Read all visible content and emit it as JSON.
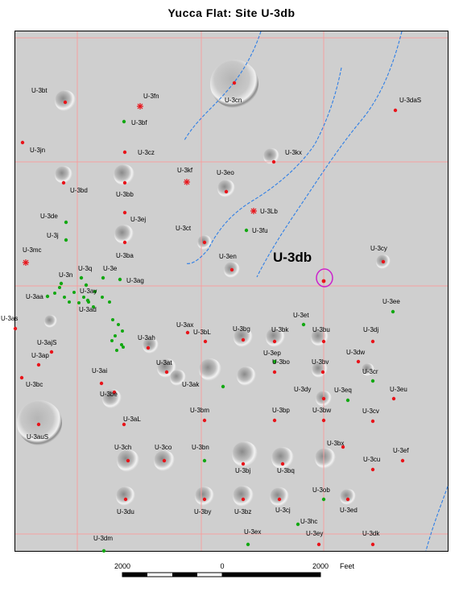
{
  "title": "Yucca Flat: Site U-3db",
  "highlight": {
    "label": "U-3db"
  },
  "colors": {
    "grid": "#f4a0a0",
    "stream": "#2f7fe6",
    "red_site": "#e8141a",
    "green_site": "#12a812",
    "highlight": "#cc22cc",
    "terrain": "#cfcfcf"
  },
  "scale": {
    "left_label": "2000",
    "mid_label": "0",
    "right_label": "2000",
    "unit": "Feet"
  },
  "sites": [
    {
      "name": "U-3bt",
      "type": "red"
    },
    {
      "name": "U-3fn",
      "type": "star"
    },
    {
      "name": "U-3bf",
      "type": "green"
    },
    {
      "name": "U-3cn",
      "type": "red"
    },
    {
      "name": "U-3daS",
      "type": "red"
    },
    {
      "name": "U-3jn",
      "type": "red"
    },
    {
      "name": "U-3cz",
      "type": "red"
    },
    {
      "name": "U-3kx",
      "type": "red"
    },
    {
      "name": "U-3kf",
      "type": "star"
    },
    {
      "name": "U-3eo",
      "type": "red"
    },
    {
      "name": "U-3bd",
      "type": "red"
    },
    {
      "name": "U-3bb",
      "type": "red"
    },
    {
      "name": "U-3Lb",
      "type": "star"
    },
    {
      "name": "U-3de",
      "type": "green"
    },
    {
      "name": "U-3ej",
      "type": "red"
    },
    {
      "name": "U-3j",
      "type": "green"
    },
    {
      "name": "U-3ct",
      "type": "red"
    },
    {
      "name": "U-3fu",
      "type": "green"
    },
    {
      "name": "U-3mc",
      "type": "star"
    },
    {
      "name": "U-3ba",
      "type": "red"
    },
    {
      "name": "U-3cy",
      "type": "red"
    },
    {
      "name": "U-3en",
      "type": "red"
    },
    {
      "name": "U-3n",
      "type": "green"
    },
    {
      "name": "U-3q",
      "type": "green"
    },
    {
      "name": "U-3e",
      "type": "green"
    },
    {
      "name": "U-3ag",
      "type": "green"
    },
    {
      "name": "U-3ay",
      "type": "green"
    },
    {
      "name": "U-3aa",
      "type": "green"
    },
    {
      "name": "U-3ad",
      "type": "green"
    },
    {
      "name": "U-3ee",
      "type": "green"
    },
    {
      "name": "U-3as",
      "type": "red"
    },
    {
      "name": "U-3et",
      "type": "green"
    },
    {
      "name": "U-3ax",
      "type": "red"
    },
    {
      "name": "U-3bL",
      "type": "red"
    },
    {
      "name": "U-3bg",
      "type": "red"
    },
    {
      "name": "U-3bk",
      "type": "red"
    },
    {
      "name": "U-3bu",
      "type": "red"
    },
    {
      "name": "U-3dj",
      "type": "red"
    },
    {
      "name": "U-3ajS",
      "type": "red"
    },
    {
      "name": "U-3ah",
      "type": "red"
    },
    {
      "name": "U-3ep",
      "type": "green"
    },
    {
      "name": "U-3dw",
      "type": "red"
    },
    {
      "name": "U-3ap",
      "type": "red"
    },
    {
      "name": "U-3at",
      "type": "red"
    },
    {
      "name": "U-3bo",
      "type": "red"
    },
    {
      "name": "U-3bv",
      "type": "red"
    },
    {
      "name": "U-3cr",
      "type": "green"
    },
    {
      "name": "U-3bc",
      "type": "red"
    },
    {
      "name": "U-3ai",
      "type": "red"
    },
    {
      "name": "U-3ak",
      "type": "green"
    },
    {
      "name": "U-3dy",
      "type": "red"
    },
    {
      "name": "U-3eq",
      "type": "green"
    },
    {
      "name": "U-3eu",
      "type": "red"
    },
    {
      "name": "U-3be",
      "type": "red"
    },
    {
      "name": "U-3bm",
      "type": "red"
    },
    {
      "name": "U-3bp",
      "type": "red"
    },
    {
      "name": "U-3bw",
      "type": "red"
    },
    {
      "name": "U-3cv",
      "type": "red"
    },
    {
      "name": "U-3aL",
      "type": "red"
    },
    {
      "name": "U-3auS",
      "type": "red"
    },
    {
      "name": "U-3bx",
      "type": "red"
    },
    {
      "name": "U-3ch",
      "type": "red"
    },
    {
      "name": "U-3co",
      "type": "red"
    },
    {
      "name": "U-3bn",
      "type": "green"
    },
    {
      "name": "U-3cu",
      "type": "red"
    },
    {
      "name": "U-3ef",
      "type": "red"
    },
    {
      "name": "U-3bj",
      "type": "red"
    },
    {
      "name": "U-3bq",
      "type": "red"
    },
    {
      "name": "U-3ob",
      "type": "green"
    },
    {
      "name": "U-3du",
      "type": "red"
    },
    {
      "name": "U-3by",
      "type": "red"
    },
    {
      "name": "U-3bz",
      "type": "red"
    },
    {
      "name": "U-3cj",
      "type": "red"
    },
    {
      "name": "U-3ed",
      "type": "red"
    },
    {
      "name": "U-3hc",
      "type": "green"
    },
    {
      "name": "U-3dm",
      "type": "green"
    },
    {
      "name": "U-3ex",
      "type": "green"
    },
    {
      "name": "U-3ey",
      "type": "red"
    },
    {
      "name": "U-3dk",
      "type": "red"
    }
  ]
}
